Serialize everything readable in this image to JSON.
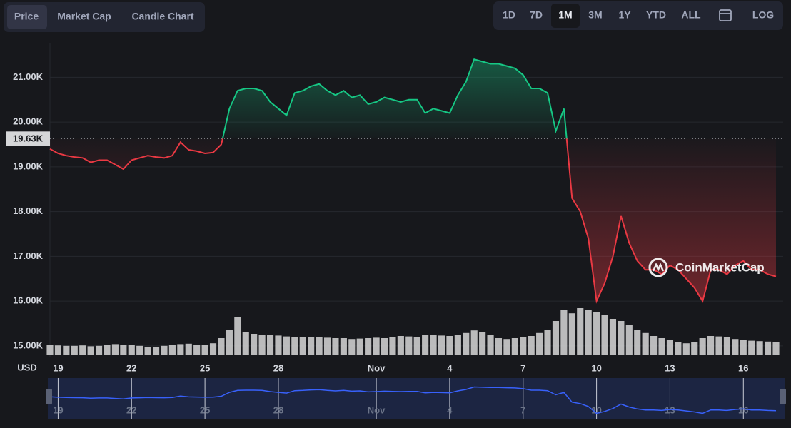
{
  "controls": {
    "tabs": [
      "Price",
      "Market Cap",
      "Candle Chart"
    ],
    "active_tab": 0,
    "ranges": [
      "1D",
      "7D",
      "1M",
      "3M",
      "1Y",
      "YTD",
      "ALL"
    ],
    "active_range": 2,
    "log_button": "LOG"
  },
  "chart_data": {
    "type": "line",
    "currency_label": "USD",
    "watermark": "CoinMarketCap",
    "categories": [
      null,
      "19",
      null,
      null,
      null,
      null,
      null,
      null,
      null,
      null,
      "22",
      null,
      null,
      null,
      null,
      null,
      null,
      null,
      null,
      "25",
      null,
      null,
      null,
      null,
      null,
      null,
      null,
      null,
      "28",
      null,
      null,
      null,
      null,
      null,
      null,
      null,
      null,
      null,
      null,
      null,
      "Nov",
      null,
      null,
      null,
      null,
      null,
      null,
      null,
      null,
      "4",
      null,
      null,
      null,
      null,
      null,
      null,
      null,
      null,
      "7",
      null,
      null,
      null,
      null,
      null,
      null,
      null,
      null,
      "10",
      null,
      null,
      null,
      null,
      null,
      null,
      null,
      null,
      "13",
      null,
      null,
      null,
      null,
      null,
      null,
      null,
      null,
      "16",
      null,
      null,
      null,
      null
    ],
    "values": [
      19400,
      19300,
      19250,
      19220,
      19200,
      19100,
      19150,
      19150,
      19050,
      18950,
      19150,
      19200,
      19250,
      19220,
      19200,
      19250,
      19550,
      19380,
      19350,
      19300,
      19320,
      19500,
      20300,
      20700,
      20750,
      20750,
      20700,
      20450,
      20300,
      20150,
      20650,
      20700,
      20800,
      20850,
      20700,
      20600,
      20700,
      20550,
      20600,
      20400,
      20450,
      20550,
      20500,
      20450,
      20500,
      20500,
      20200,
      20300,
      20250,
      20200,
      20600,
      20900,
      21400,
      21350,
      21300,
      21300,
      21250,
      21200,
      21050,
      20750,
      20750,
      20650,
      19800,
      20300,
      18300,
      18000,
      17400,
      16000,
      16400,
      17000,
      17900,
      17300,
      16900,
      16700,
      16700,
      16600,
      16800,
      16700,
      16500,
      16300,
      16000,
      16700,
      16700,
      16600,
      16800,
      16900,
      16700,
      16700,
      16600,
      16550
    ],
    "volume": [
      24,
      23,
      22,
      22,
      23,
      21,
      22,
      25,
      26,
      24,
      24,
      22,
      20,
      20,
      22,
      25,
      26,
      27,
      24,
      25,
      28,
      40,
      60,
      90,
      55,
      50,
      48,
      47,
      46,
      44,
      42,
      43,
      42,
      42,
      41,
      40,
      40,
      38,
      39,
      40,
      41,
      40,
      42,
      45,
      44,
      42,
      48,
      47,
      46,
      45,
      47,
      52,
      58,
      55,
      48,
      40,
      38,
      40,
      42,
      45,
      52,
      60,
      80,
      105,
      98,
      110,
      105,
      100,
      95,
      85,
      80,
      70,
      60,
      52,
      45,
      40,
      35,
      30,
      28,
      30,
      40,
      45,
      44,
      42,
      38,
      35,
      34,
      33,
      32,
      31
    ],
    "baseline": {
      "value": 19630,
      "label": "19.63K"
    },
    "color_up": "#16c784",
    "color_down": "#ea3943",
    "volume_color": "#d8d8d8",
    "navigator_color": "#3861fb",
    "ylim": [
      14760,
      21770
    ],
    "yticks": [
      {
        "value": 15000,
        "label": "15.00K"
      },
      {
        "value": 16000,
        "label": "16.00K"
      },
      {
        "value": 17000,
        "label": "17.00K"
      },
      {
        "value": 18000,
        "label": "18.00K"
      },
      {
        "value": 19000,
        "label": "19.00K"
      },
      {
        "value": 20000,
        "label": "20.00K"
      },
      {
        "value": 21000,
        "label": "21.00K"
      }
    ],
    "grid": true
  }
}
